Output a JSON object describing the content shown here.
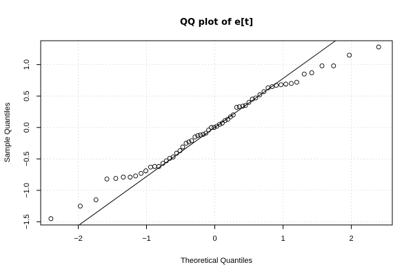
{
  "chart_data": {
    "type": "scatter",
    "title": "QQ plot of e[t]",
    "xlabel": "Theoretical Quantiles",
    "ylabel": "Sample Quantiles",
    "xlim": [
      -2.55,
      2.6
    ],
    "ylim": [
      -1.55,
      1.38
    ],
    "xticks": [
      -2,
      -1,
      0,
      1,
      2
    ],
    "yticks": [
      -1.5,
      -1.0,
      -0.5,
      0.0,
      0.5,
      1.0
    ],
    "xtick_labels": [
      "−2",
      "−1",
      "0",
      "1",
      "2"
    ],
    "ytick_labels": [
      "−1.5",
      "−1.0",
      "−0.5",
      "0.0",
      "0.5",
      "1.0"
    ],
    "grid": true,
    "reference_line": {
      "slope": 0.78,
      "intercept": 0.0
    },
    "points": {
      "x": [
        -2.4,
        -1.97,
        -1.74,
        -1.58,
        -1.45,
        -1.34,
        -1.24,
        -1.16,
        -1.08,
        -1.01,
        -0.94,
        -0.88,
        -0.82,
        -0.76,
        -0.71,
        -0.66,
        -0.61,
        -0.56,
        -0.51,
        -0.47,
        -0.42,
        -0.38,
        -0.34,
        -0.29,
        -0.25,
        -0.21,
        -0.17,
        -0.13,
        -0.09,
        -0.05,
        -0.01,
        0.03,
        0.07,
        0.11,
        0.15,
        0.19,
        0.23,
        0.27,
        0.32,
        0.36,
        0.41,
        0.45,
        0.5,
        0.55,
        0.6,
        0.66,
        0.72,
        0.78,
        0.84,
        0.9,
        0.97,
        1.04,
        1.12,
        1.2,
        1.31,
        1.42,
        1.57,
        1.74,
        1.97,
        2.4
      ],
      "y": [
        -1.45,
        -1.25,
        -1.15,
        -0.82,
        -0.81,
        -0.79,
        -0.79,
        -0.77,
        -0.73,
        -0.69,
        -0.63,
        -0.62,
        -0.62,
        -0.57,
        -0.53,
        -0.49,
        -0.47,
        -0.41,
        -0.37,
        -0.31,
        -0.25,
        -0.23,
        -0.21,
        -0.15,
        -0.13,
        -0.12,
        -0.11,
        -0.09,
        -0.04,
        0.0,
        0.0,
        0.02,
        0.05,
        0.07,
        0.11,
        0.13,
        0.17,
        0.2,
        0.32,
        0.33,
        0.34,
        0.35,
        0.4,
        0.45,
        0.47,
        0.52,
        0.57,
        0.63,
        0.65,
        0.67,
        0.68,
        0.69,
        0.7,
        0.72,
        0.85,
        0.87,
        0.98,
        0.98,
        1.15,
        1.28
      ]
    }
  }
}
